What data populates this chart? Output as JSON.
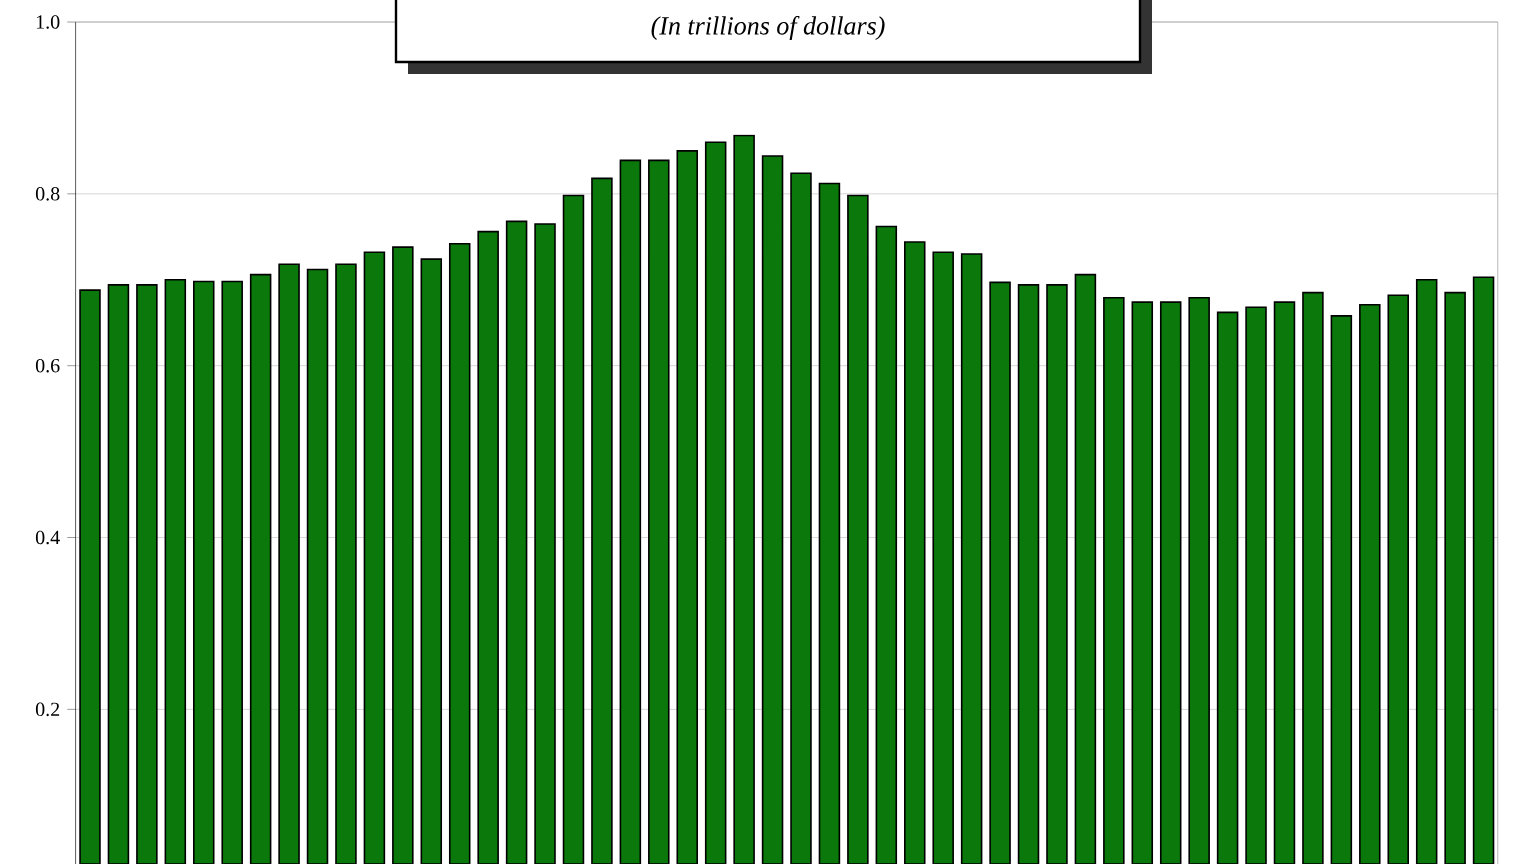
{
  "chart_data": {
    "type": "bar",
    "subtitle": "(In trillions of dollars)",
    "categories": [
      null,
      null,
      null,
      null,
      null,
      null,
      null,
      null,
      null,
      null,
      null,
      null,
      null,
      null,
      null,
      null,
      null,
      null,
      null,
      null,
      null,
      null,
      null,
      null,
      null,
      null,
      null,
      null,
      null,
      null,
      null,
      null,
      null,
      null,
      null,
      null,
      null,
      null,
      null,
      null,
      null,
      null,
      null,
      null,
      null,
      null,
      null,
      null,
      null,
      null
    ],
    "values": [
      0.688,
      0.694,
      0.694,
      0.7,
      0.698,
      0.698,
      0.706,
      0.718,
      0.712,
      0.718,
      0.732,
      0.738,
      0.724,
      0.742,
      0.756,
      0.768,
      0.765,
      0.798,
      0.818,
      0.839,
      0.839,
      0.85,
      0.86,
      0.868,
      0.844,
      0.824,
      0.812,
      0.798,
      0.762,
      0.744,
      0.732,
      0.73,
      0.697,
      0.694,
      0.694,
      0.706,
      0.679,
      0.674,
      0.674,
      0.679,
      0.662,
      0.668,
      0.674,
      0.685,
      0.658,
      0.671,
      0.682,
      0.7,
      0.685,
      0.703
    ],
    "color": "#0a780a",
    "ylim": [
      0.02,
      1.0
    ],
    "yticks": [
      0.2,
      0.4,
      0.6,
      0.8,
      {
        "value": 1.0,
        "label": "1.0"
      }
    ],
    "grid": "y"
  }
}
